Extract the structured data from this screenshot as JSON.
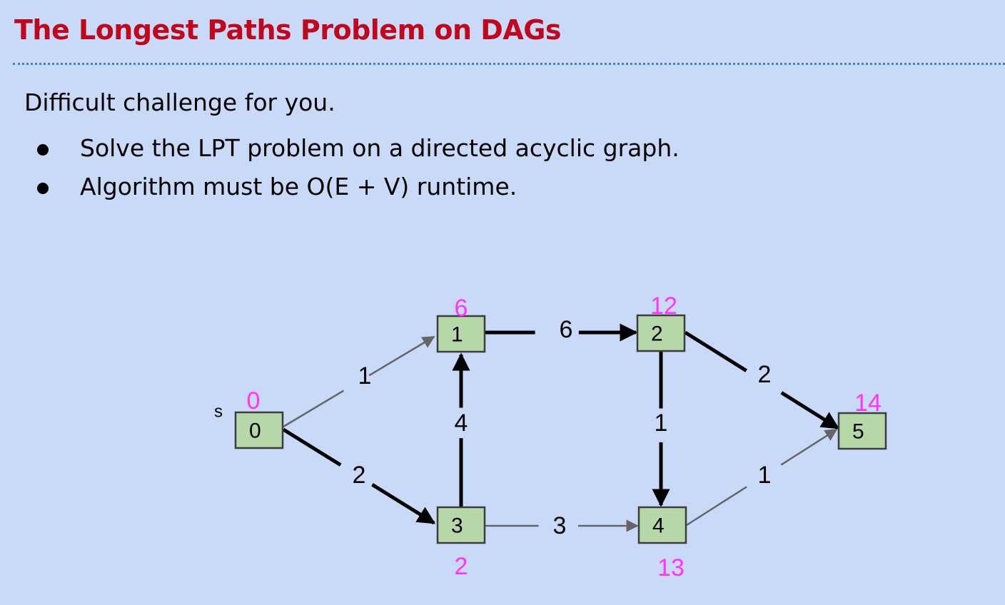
{
  "title": "The Longest Paths Problem on DAGs",
  "intro": "Difficult challenge for you.",
  "bullets": [
    "Solve the LPT problem on a directed acyclic graph.",
    "Algorithm must be O(E + V) runtime."
  ],
  "graph": {
    "source_label": "s",
    "nodes": [
      {
        "id": "0",
        "label": "0",
        "distance": "0"
      },
      {
        "id": "1",
        "label": "1",
        "distance": "6"
      },
      {
        "id": "2",
        "label": "2",
        "distance": "12"
      },
      {
        "id": "3",
        "label": "3",
        "distance": "2"
      },
      {
        "id": "4",
        "label": "4",
        "distance": "13"
      },
      {
        "id": "5",
        "label": "5",
        "distance": "14"
      }
    ],
    "edges": [
      {
        "from": "0",
        "to": "1",
        "weight": "1",
        "bold": false
      },
      {
        "from": "0",
        "to": "3",
        "weight": "2",
        "bold": true
      },
      {
        "from": "3",
        "to": "1",
        "weight": "4",
        "bold": true
      },
      {
        "from": "1",
        "to": "2",
        "weight": "6",
        "bold": true
      },
      {
        "from": "3",
        "to": "4",
        "weight": "3",
        "bold": false
      },
      {
        "from": "2",
        "to": "4",
        "weight": "1",
        "bold": true
      },
      {
        "from": "2",
        "to": "5",
        "weight": "2",
        "bold": true
      },
      {
        "from": "4",
        "to": "5",
        "weight": "1",
        "bold": false
      }
    ]
  },
  "colors": {
    "background": "#c9daf8",
    "title": "#c0071c",
    "divider": "#3d85c6",
    "node_fill": "#b6d7a8",
    "node_stroke": "#3c3c3c",
    "distance": "#ff33ff",
    "edge_bold": "#000000",
    "edge_thin": "#666666"
  }
}
